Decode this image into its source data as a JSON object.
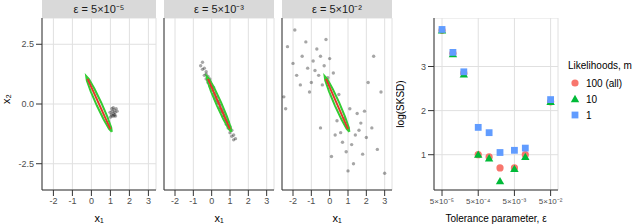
{
  "chart_data": [
    {
      "type": "scatter",
      "title": "ε = 5×10⁻⁵",
      "x_label": "x₁",
      "y_label": "x₂",
      "xlim": [
        -2.6,
        3.4
      ],
      "xticks": [
        -2,
        -1,
        0,
        1,
        2,
        3
      ],
      "ylim": [
        -3.6,
        3.6
      ],
      "yticks": [
        -2.5,
        {
          "value": 0,
          "label": "0.0"
        },
        2.5
      ],
      "grid": true,
      "series": [
        {
          "type": "scatter",
          "color": "#000000",
          "marker": "circle",
          "x": [
            1.05,
            1.1,
            1.15,
            1.2,
            1.25,
            1.0,
            1.1,
            1.3,
            1.18,
            1.08,
            1.22,
            0.98,
            1.35,
            1.15,
            1.27
          ],
          "values": [
            -0.45,
            -0.3,
            -0.4,
            -0.25,
            -0.35,
            -0.55,
            -0.5,
            -0.2,
            -0.5,
            -0.2,
            -0.45,
            -0.35,
            -0.3,
            -0.15,
            -0.5
          ]
        },
        {
          "type": "line",
          "color": "#33cc33",
          "x": [
            1.075,
            1.041,
            0.836,
            0.513,
            0.16,
            -0.129,
            -0.275,
            -0.241,
            -0.036,
            0.287,
            0.64,
            0.929,
            1.075
          ],
          "values": [
            -1.169,
            -0.979,
            -0.529,
            0.065,
            0.641,
            1.045,
            1.169,
            0.979,
            0.529,
            -0.065,
            -0.641,
            -1.045,
            -1.169
          ]
        },
        {
          "type": "line",
          "color": "#e0392b",
          "x": [
            -0.2,
            1.0
          ],
          "values": [
            1.05,
            -1.05
          ]
        }
      ]
    },
    {
      "type": "scatter",
      "title": "ε = 5×10⁻³",
      "x_label": "x₁",
      "xlim": [
        -2.6,
        3.4
      ],
      "xticks": [
        -2,
        -1,
        0,
        1,
        2,
        3
      ],
      "ylim": [
        -3.6,
        3.6
      ],
      "yticks": [
        -2.5,
        {
          "value": 0,
          "label": "0.0"
        },
        2.5
      ],
      "grid": true,
      "tick_labels": "x",
      "series": [
        {
          "type": "scatter",
          "color": "#000000",
          "marker": "circle",
          "x": [
            -0.6,
            -0.5,
            -0.5,
            -0.4,
            -0.4,
            -0.3,
            -0.3,
            -0.3,
            -0.2,
            -0.2,
            -0.2,
            -0.1,
            -0.1,
            -0.1,
            0,
            0,
            0,
            0.1,
            0.1,
            0.1,
            0.2,
            0.2,
            0.2,
            0.3,
            0.3,
            0.3,
            0.4,
            0.4,
            0.4,
            0.5,
            0.5,
            0.5,
            0.6,
            0.6,
            0.6,
            0.7,
            0.7,
            0.7,
            0.8,
            0.8,
            0.8,
            0.9,
            0.9,
            0.9,
            1.0,
            1.0,
            1.0,
            1.1,
            1.1,
            1.2,
            1.2,
            1.3
          ],
          "values": [
            1.6,
            1.75,
            1.45,
            1.5,
            1.2,
            1.35,
            1.05,
            1.25,
            1.15,
            0.9,
            1.0,
            0.95,
            0.75,
            1.05,
            0.8,
            0.55,
            0.7,
            0.6,
            0.4,
            0.7,
            0.45,
            0.2,
            0.3,
            0.3,
            0.05,
            0.15,
            0.1,
            -0.15,
            0.0,
            -0.05,
            -0.3,
            -0.2,
            -0.25,
            -0.5,
            -0.35,
            -0.4,
            -0.65,
            -0.5,
            -0.6,
            -0.85,
            -0.7,
            -0.75,
            -1.0,
            -0.9,
            -0.95,
            -1.2,
            -1.05,
            -1.1,
            -1.35,
            -1.3,
            -1.5,
            -1.45
          ]
        },
        {
          "type": "line",
          "color": "#33cc33",
          "x": [
            1.075,
            1.041,
            0.836,
            0.513,
            0.16,
            -0.129,
            -0.275,
            -0.241,
            -0.036,
            0.287,
            0.64,
            0.929,
            1.075
          ],
          "values": [
            -1.169,
            -0.979,
            -0.529,
            0.065,
            0.641,
            1.045,
            1.169,
            0.979,
            0.529,
            -0.065,
            -0.641,
            -1.045,
            -1.169
          ]
        },
        {
          "type": "line",
          "color": "#e0392b",
          "x": [
            -0.2,
            1.0
          ],
          "values": [
            1.05,
            -1.05
          ]
        }
      ]
    },
    {
      "type": "scatter",
      "title": "ε = 5×10⁻²",
      "x_label": "x₁",
      "xlim": [
        -2.6,
        3.4
      ],
      "xticks": [
        -2,
        -1,
        0,
        1,
        2,
        3
      ],
      "ylim": [
        -3.6,
        3.6
      ],
      "yticks": [
        -2.5,
        {
          "value": 0,
          "label": "0.0"
        },
        2.5
      ],
      "grid": true,
      "tick_labels": "x",
      "series": [
        {
          "type": "scatter",
          "color": "#000000",
          "marker": "circle",
          "x": [
            -1.5,
            -1.2,
            -0.9,
            -0.6,
            -1.0,
            -0.3,
            -0.7,
            -1.8,
            -0.4,
            -1.3,
            -0.1,
            -0.8,
            -2.0,
            -0.5,
            0.0,
            -1.1,
            -2.3,
            -0.2,
            -1.6,
            0.2,
            1.0,
            1.4,
            0.8,
            1.7,
            1.2,
            0.6,
            2.0,
            1.5,
            0.9,
            1.8,
            0.4,
            1.1,
            2.3,
            1.3,
            0.7,
            2.6,
            1.6,
            0.3,
            1.9,
            1.0,
            2.8,
            -2.4,
            0.5,
            2.4,
            -0.5,
            3.0,
            -1.9,
            0.1,
            2.1,
            -2.5
          ],
          "values": [
            2.0,
            1.5,
            1.8,
            1.2,
            0.9,
            1.6,
            2.3,
            1.2,
            0.8,
            2.6,
            1.1,
            1.4,
            1.7,
            2.0,
            1.9,
            0.5,
            2.4,
            2.7,
            0.8,
            1.3,
            -1.0,
            -1.3,
            -0.6,
            -0.8,
            -1.7,
            -1.2,
            -1.4,
            -0.4,
            -2.0,
            -2.1,
            -0.7,
            -0.2,
            -1.0,
            -2.5,
            -1.6,
            -1.9,
            -1.1,
            -1.3,
            -0.3,
            -2.8,
            0.5,
            -0.2,
            0.4,
            2.0,
            -1.0,
            -2.9,
            3.1,
            -2.2,
            0.9,
            0.3
          ]
        },
        {
          "type": "line",
          "color": "#33cc33",
          "x": [
            1.075,
            1.041,
            0.836,
            0.513,
            0.16,
            -0.129,
            -0.275,
            -0.241,
            -0.036,
            0.287,
            0.64,
            0.929,
            1.075
          ],
          "values": [
            -1.169,
            -0.979,
            -0.529,
            0.065,
            0.641,
            1.045,
            1.169,
            0.979,
            0.529,
            -0.065,
            -0.641,
            -1.045,
            -1.169
          ]
        },
        {
          "type": "line",
          "color": "#e0392b",
          "x": [
            -0.2,
            1.0
          ],
          "values": [
            1.05,
            -1.05
          ]
        }
      ]
    },
    {
      "type": "scatter",
      "x_label": "Tolerance parameter, ε",
      "y_label": "log(SKSD)",
      "log": "x",
      "grid": true,
      "legend": "right",
      "legend_title": "Likelihoods, m",
      "xlim": [
        3e-05,
        0.08
      ],
      "xticks": [
        {
          "value": 5e-05,
          "label": "5×10⁻⁵"
        },
        {
          "value": 0.0005,
          "label": "5×10⁻⁴"
        },
        {
          "value": 0.005,
          "label": "5×10⁻³"
        },
        {
          "value": 0.05,
          "label": "5×10⁻²"
        }
      ],
      "ylim": [
        0.2,
        4.1
      ],
      "yticks": [
        1,
        2,
        3
      ],
      "x": [
        5e-05,
        0.0001,
        0.0002,
        0.0005,
        0.001,
        0.002,
        0.005,
        0.01,
        0.05
      ],
      "series": [
        {
          "name": "100 (all)",
          "color": "#F8766D",
          "marker": "circle",
          "values": [
            3.82,
            3.3,
            2.85,
            1.0,
            0.95,
            0.7,
            0.7,
            1.0,
            2.2
          ]
        },
        {
          "name": "10",
          "color": "#00BA38",
          "marker": "triangle",
          "values": [
            3.82,
            3.28,
            2.82,
            1.0,
            0.92,
            0.4,
            0.68,
            0.95,
            2.2
          ]
        },
        {
          "name": "1",
          "color": "#619CFF",
          "marker": "square",
          "values": [
            3.84,
            3.32,
            2.88,
            1.62,
            1.5,
            1.05,
            1.1,
            1.15,
            2.25
          ]
        }
      ]
    }
  ]
}
